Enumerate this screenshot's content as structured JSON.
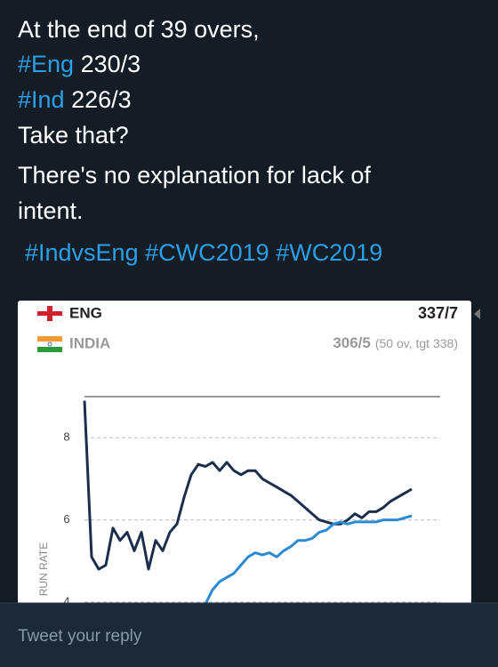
{
  "tweet": {
    "lines": [
      [
        {
          "text": "At the end of 39 overs,"
        }
      ],
      [
        {
          "text": "#Eng",
          "link": true
        },
        {
          "text": " 230/3"
        }
      ],
      [
        {
          "text": "#Ind",
          "link": true
        },
        {
          "text": " 226/3"
        }
      ],
      [
        {
          "text": "Take that?"
        }
      ],
      [
        {
          "text": "There's no explanation for lack of"
        }
      ],
      [
        {
          "text": "intent."
        }
      ],
      [
        {
          "text": "#IndvsEng",
          "link": true
        },
        {
          "text": " "
        },
        {
          "text": "#CWC2019",
          "link": true
        },
        {
          "text": " "
        },
        {
          "text": "#WC2019",
          "link": true
        }
      ]
    ]
  },
  "scoreboard": [
    {
      "score": "337/7"
    },
    {
      "score": "306/5",
      "detail": "(50 ov, tgt 338)"
    }
  ],
  "chart_data": {
    "type": "line",
    "ylabel": "RUN RATE",
    "x": [
      0,
      1,
      2,
      3,
      4,
      5,
      6,
      7,
      8,
      9,
      10,
      11,
      12,
      13,
      14,
      15,
      16,
      17,
      18,
      19,
      20,
      21,
      22,
      23,
      24,
      25,
      26,
      27,
      28,
      29,
      30,
      31,
      32,
      33,
      34,
      35,
      36,
      37,
      38,
      39,
      40,
      41,
      42,
      43,
      44,
      45,
      46
    ],
    "xlim": [
      0,
      50
    ],
    "ylim": [
      4,
      9
    ],
    "yticks": [
      4,
      6,
      8
    ],
    "grid": true,
    "series": [
      {
        "name": "ENG",
        "color": "#1b2f4d",
        "values": [
          8.9,
          5.1,
          4.8,
          4.9,
          5.8,
          5.5,
          5.7,
          5.25,
          5.7,
          4.8,
          5.5,
          5.25,
          5.7,
          5.9,
          6.55,
          7.1,
          7.35,
          7.3,
          7.4,
          7.2,
          7.4,
          7.2,
          7.1,
          7.2,
          7.2,
          7.0,
          6.9,
          6.8,
          6.7,
          6.6,
          6.45,
          6.3,
          6.15,
          6.0,
          5.95,
          5.9,
          5.9,
          6.0,
          6.15,
          6.05,
          6.2,
          6.2,
          6.3,
          6.45,
          6.55,
          6.65,
          6.75
        ]
      },
      {
        "name": "INDIA",
        "color": "#2a8ad4",
        "values": [
          null,
          null,
          null,
          null,
          null,
          null,
          null,
          null,
          null,
          null,
          null,
          null,
          null,
          null,
          null,
          null,
          null,
          3.95,
          4.3,
          4.5,
          4.6,
          4.7,
          4.9,
          5.1,
          5.2,
          5.15,
          5.2,
          5.1,
          5.25,
          5.35,
          5.5,
          5.5,
          5.55,
          5.7,
          5.75,
          5.9,
          5.95,
          5.9,
          5.95,
          5.95,
          5.95,
          5.95,
          6.0,
          6.0,
          6.0,
          6.05,
          6.1
        ]
      }
    ]
  },
  "reply_placeholder": "Tweet your reply"
}
